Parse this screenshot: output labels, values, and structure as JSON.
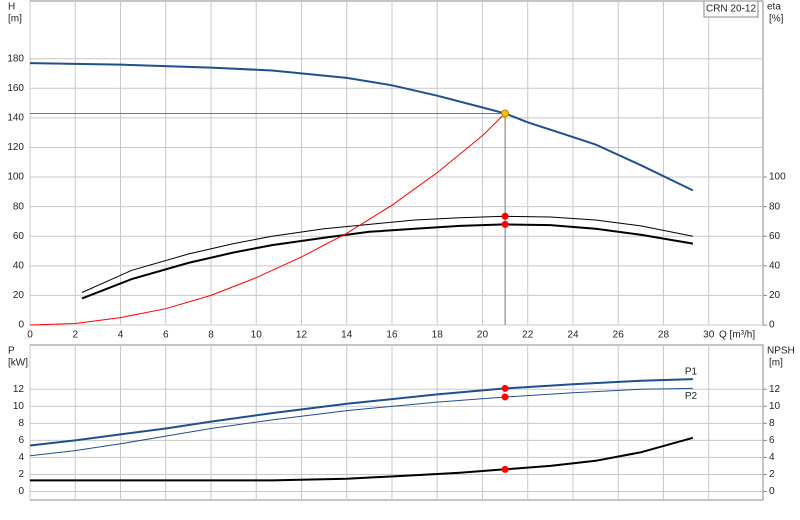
{
  "chart_data": [
    {
      "type": "line",
      "title": "CRN 20-12",
      "xlabel": "Q [m³/h]",
      "ylabel": "H",
      "ylabel_unit": "[m]",
      "y2label": "eta",
      "y2label_unit": "[%]",
      "xlim": [
        0,
        32.4
      ],
      "xticks": [
        0,
        2,
        4,
        6,
        8,
        10,
        12,
        14,
        16,
        18,
        20,
        22,
        24,
        26,
        28,
        30
      ],
      "show_xtick_labels": true,
      "ylim": [
        0,
        219
      ],
      "yticks": [
        0,
        20,
        40,
        60,
        80,
        100,
        120,
        140,
        160,
        180
      ],
      "y2lim": [
        0,
        219
      ],
      "y2ticks": [
        0,
        20,
        40,
        60,
        80,
        100
      ],
      "grid": true,
      "duty_lines": true,
      "series": [
        {
          "color": "#1f4f8f",
          "line_width": 2,
          "x": [
            0,
            4,
            8,
            10.7,
            14,
            16,
            18,
            20,
            21,
            22,
            24,
            25,
            27,
            29.3
          ],
          "values": [
            177,
            176,
            174,
            172,
            167,
            162,
            155,
            147,
            143,
            137,
            127,
            122,
            108,
            91
          ]
        },
        {
          "color": "#000000",
          "line_width": 1,
          "axis": "y2",
          "x": [
            2.3,
            4.5,
            7,
            9,
            10.7,
            13,
            15,
            17,
            19,
            21,
            23,
            25,
            27,
            29.3
          ],
          "values": [
            22,
            37,
            48,
            55,
            60,
            65,
            68,
            71,
            72.5,
            73.5,
            73,
            71,
            67,
            60
          ]
        },
        {
          "color": "#000000",
          "line_width": 2,
          "axis": "y2",
          "x": [
            2.3,
            4.5,
            7,
            9,
            10.7,
            13,
            15,
            17,
            19,
            21,
            23,
            25,
            27,
            29.3
          ],
          "values": [
            18,
            31,
            42,
            49,
            54,
            59,
            63,
            65,
            67,
            68,
            67.5,
            65,
            61,
            55
          ]
        },
        {
          "color": "#ff0000",
          "line_width": 1,
          "x": [
            0,
            2,
            4,
            6,
            8,
            10,
            12,
            14,
            16,
            18,
            20,
            21
          ],
          "values": [
            0,
            1,
            5,
            11,
            20,
            32,
            46,
            62,
            81,
            103,
            128,
            143
          ]
        }
      ],
      "points": [
        {
          "x": 21,
          "y": 143,
          "color": "#ffc000"
        },
        {
          "x": 21,
          "y": 73.5,
          "color": "#ff0000"
        },
        {
          "x": 21,
          "y": 68,
          "color": "#ff0000"
        }
      ]
    },
    {
      "type": "line",
      "ylabel": "P",
      "ylabel_unit": "[kW]",
      "y2label": "NPSH",
      "y2label_unit": "[m]",
      "xlim": [
        0,
        32.4
      ],
      "xticks": [
        0,
        2,
        4,
        6,
        8,
        10,
        12,
        14,
        16,
        18,
        20,
        22,
        24,
        26,
        28,
        30
      ],
      "show_xtick_labels": false,
      "ylim": [
        -1,
        17.2
      ],
      "yticks": [
        0,
        2,
        4,
        6,
        8,
        10,
        12
      ],
      "y2lim": [
        -1,
        17.2
      ],
      "y2ticks": [
        0,
        2,
        4,
        6,
        8,
        10,
        12
      ],
      "grid": true,
      "duty_lines": false,
      "series": [
        {
          "name": "P1",
          "color": "#1f4f8f",
          "line_width": 2,
          "x": [
            0,
            2,
            4,
            6,
            8,
            10.7,
            14,
            18,
            21,
            24,
            27,
            29.3
          ],
          "values": [
            5.4,
            6,
            6.7,
            7.4,
            8.2,
            9.2,
            10.3,
            11.4,
            12.1,
            12.6,
            13,
            13.2
          ]
        },
        {
          "name": "P2",
          "color": "#1f4f8f",
          "line_width": 1,
          "x": [
            0,
            2,
            4,
            6,
            8,
            10.7,
            14,
            18,
            21,
            24,
            27,
            29.3
          ],
          "values": [
            4.2,
            4.8,
            5.6,
            6.5,
            7.4,
            8.4,
            9.5,
            10.5,
            11.1,
            11.6,
            12,
            12.1
          ]
        },
        {
          "color": "#000000",
          "line_width": 2,
          "axis": "y2",
          "x": [
            0,
            10.7,
            14,
            17,
            19,
            21,
            23,
            25,
            27,
            29.3
          ],
          "values": [
            1.3,
            1.3,
            1.5,
            1.9,
            2.2,
            2.6,
            3,
            3.6,
            4.6,
            6.3
          ]
        }
      ],
      "points": [
        {
          "x": 21,
          "y": 12.1,
          "color": "#ff0000"
        },
        {
          "x": 21,
          "y": 11.1,
          "color": "#ff0000"
        },
        {
          "x": 21,
          "y": 2.6,
          "color": "#ff0000"
        }
      ]
    }
  ]
}
